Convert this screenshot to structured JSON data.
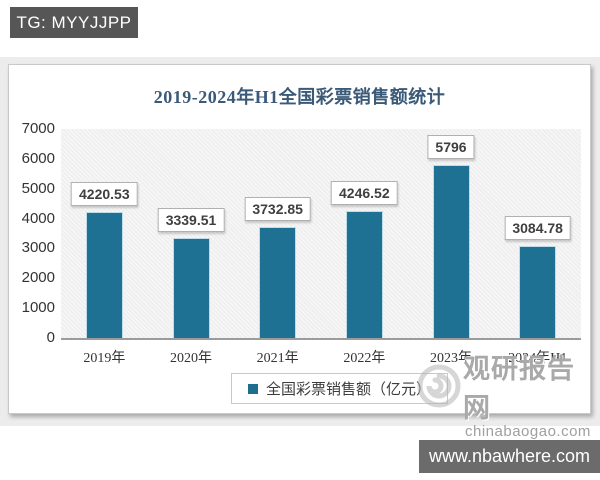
{
  "top_banner": {
    "label": "TG: MYYJJPP"
  },
  "bottom_banner": {
    "label": "www.nbawhere.com"
  },
  "watermark": {
    "brand": "观研报告网",
    "domain": "chinabaogao.com"
  },
  "chart_data": {
    "type": "bar",
    "title": "2019-2024年H1全国彩票销售额统计",
    "categories": [
      "2019年",
      "2020年",
      "2021年",
      "2022年",
      "2023年",
      "2024年H1"
    ],
    "values": [
      4220.53,
      3339.51,
      3732.85,
      4246.52,
      5796,
      3084.78
    ],
    "value_labels": [
      "4220.53",
      "3339.51",
      "3732.85",
      "4246.52",
      "5796",
      "3084.78"
    ],
    "legend": "全国彩票销售额（亿元）",
    "xlabel": "",
    "ylabel": "",
    "ylim": [
      0,
      7000
    ],
    "ytick_step": 1000,
    "grid": false,
    "legend_position": "bottom",
    "bar_color": "#1f7193"
  }
}
